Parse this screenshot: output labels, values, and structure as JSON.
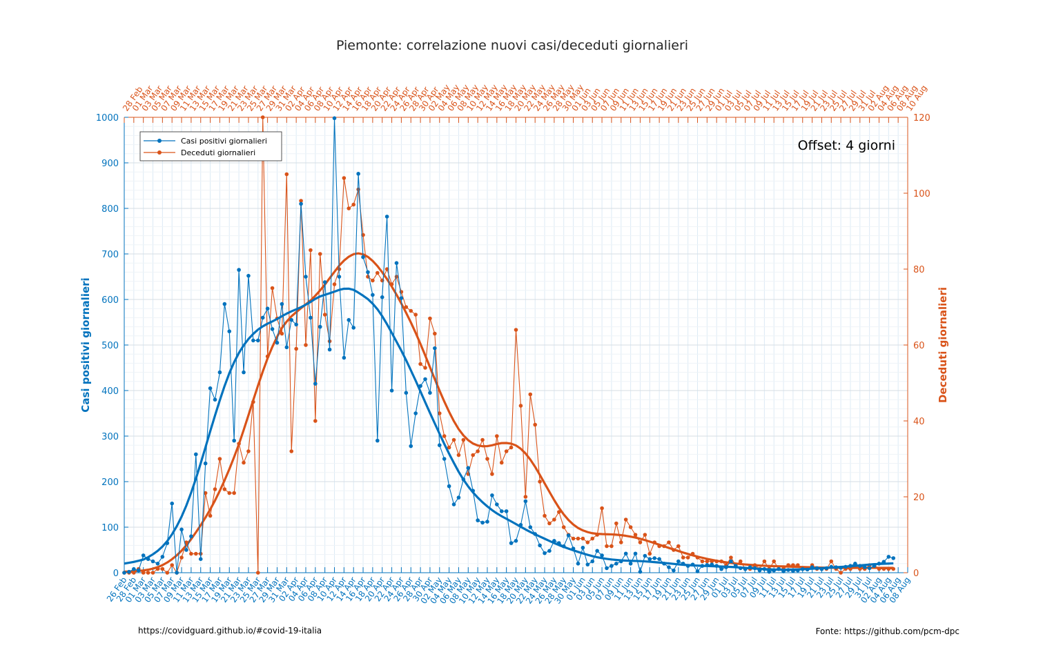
{
  "title": "Piemonte: correlazione nuovi casi/deceduti giornalieri",
  "offset_text": "Offset: 4 giorni",
  "footer_left": "https://covidguard.github.io/#covid-19-italia",
  "footer_right": "Fonte: https://github.com/pcm-dpc",
  "colors": {
    "cases": "#0072BD",
    "deaths": "#D95319",
    "grid": "#DCEAF5"
  },
  "chart_data": {
    "type": "line",
    "title": "Piemonte: correlazione nuovi casi/deceduti giornalieri",
    "grid": true,
    "legend_position": "top-left",
    "yaxis_left": {
      "label": "Casi positivi giornalieri",
      "ylim": [
        0,
        1000
      ],
      "ticks": [
        0,
        100,
        200,
        300,
        400,
        500,
        600,
        700,
        800,
        900,
        1000
      ]
    },
    "yaxis_right": {
      "label": "Deceduti giornalieri",
      "ylim": [
        0,
        120
      ],
      "ticks": [
        0,
        20,
        40,
        60,
        80,
        100,
        120
      ]
    },
    "x_bottom": {
      "start": "2020-02-26",
      "end": "2020-08-08"
    },
    "x_top": {
      "start": "2020-02-28",
      "end": "2020-08-12"
    },
    "series": [
      {
        "name": "Casi positivi giornalieri",
        "axis": "left",
        "x_start": "2020-02-26",
        "values": [
          0,
          2,
          8,
          5,
          38,
          30,
          25,
          20,
          35,
          65,
          152,
          0,
          95,
          50,
          80,
          260,
          30,
          240,
          405,
          380,
          440,
          590,
          530,
          290,
          665,
          440,
          652,
          510,
          510,
          560,
          580,
          535,
          505,
          590,
          495,
          555,
          545,
          810,
          650,
          560,
          415,
          540,
          638,
          490,
          998,
          650,
          472,
          555,
          538,
          876,
          693,
          660,
          610,
          290,
          605,
          782,
          400,
          680,
          603,
          395,
          278,
          350,
          410,
          425,
          395,
          493,
          280,
          250,
          190,
          150,
          165,
          205,
          230,
          180,
          115,
          110,
          112,
          170,
          150,
          135,
          135,
          65,
          70,
          105,
          157,
          100,
          85,
          60,
          43,
          48,
          70,
          65,
          58,
          82,
          53,
          20,
          55,
          18,
          25,
          48,
          38,
          10,
          15,
          20,
          25,
          42,
          20,
          42,
          2,
          37,
          30,
          32,
          30,
          20,
          12,
          5,
          25,
          20,
          15,
          18,
          3,
          15,
          17,
          18,
          15,
          8,
          12,
          25,
          15,
          10,
          8,
          12,
          10,
          5,
          8,
          2,
          5,
          8,
          3,
          6,
          4,
          5,
          8,
          7,
          12,
          10,
          8,
          10,
          13,
          12,
          11,
          13,
          15,
          20,
          15,
          12,
          10,
          15,
          20,
          24,
          35,
          32
        ]
      },
      {
        "name": "Deceduti giornalieri",
        "axis": "right",
        "x_start": "2020-02-26",
        "values": [
          0,
          0,
          0,
          1,
          0,
          0,
          0,
          1,
          1,
          0,
          2,
          0,
          4,
          8,
          5,
          5,
          5,
          21,
          15,
          22,
          30,
          22,
          21,
          21,
          34,
          29,
          32,
          45,
          0,
          120,
          57,
          75,
          67,
          63,
          105,
          32,
          59,
          98,
          60,
          85,
          40,
          84,
          68,
          61,
          76,
          80,
          104,
          96,
          97,
          101,
          89,
          78,
          77,
          79,
          77,
          80,
          76,
          78,
          74,
          70,
          69,
          68,
          55,
          54,
          67,
          63,
          42,
          36,
          33,
          35,
          31,
          35,
          26,
          31,
          32,
          35,
          30,
          26,
          36,
          29,
          32,
          33,
          64,
          44,
          20,
          47,
          39,
          24,
          15,
          13,
          14,
          16,
          12,
          10,
          9,
          9,
          9,
          8,
          9,
          10,
          17,
          7,
          7,
          13,
          8,
          14,
          12,
          10,
          8,
          10,
          5,
          8,
          7,
          7,
          8,
          6,
          7,
          4,
          4,
          5,
          4,
          3,
          3,
          3,
          3,
          3,
          2,
          4,
          2,
          3,
          1,
          1,
          2,
          1,
          3,
          1,
          3,
          1,
          1,
          2,
          2,
          2,
          1,
          1,
          2,
          1,
          1,
          1,
          3,
          1,
          0,
          1,
          1,
          2,
          1,
          1,
          2,
          2,
          1,
          1,
          1,
          1
        ]
      }
    ]
  }
}
